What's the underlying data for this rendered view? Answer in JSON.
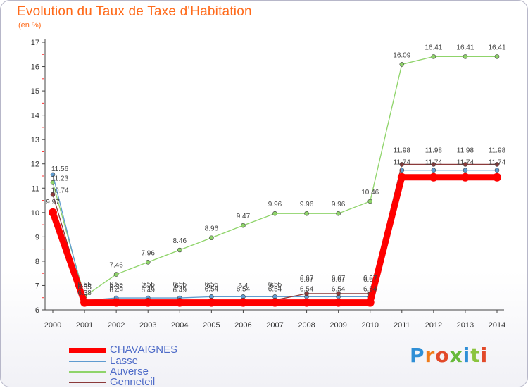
{
  "title": "Evolution du Taux de Taxe d'Habitation",
  "subtitle": "(en %)",
  "logo": {
    "text": "Proxiti",
    "colors": [
      "#2f8fd6",
      "#f07c1a",
      "#e24a2a",
      "#67b93a",
      "#2f8fd6",
      "#8bc43f",
      "#e24a2a"
    ]
  },
  "chart_data": {
    "type": "line",
    "x": [
      "2000",
      "2001",
      "2002",
      "2003",
      "2004",
      "2005",
      "2006",
      "2007",
      "2008",
      "2009",
      "2010",
      "2011",
      "2012",
      "2013",
      "2014"
    ],
    "ylim": [
      6,
      17
    ],
    "yticks": [
      6,
      7,
      8,
      9,
      10,
      11,
      12,
      13,
      14,
      15,
      16,
      17
    ],
    "grid": false,
    "legend_position": "bottom-left",
    "series": [
      {
        "name": "CHAVAIGNES",
        "color": "#ff0000",
        "values": [
          10.0,
          6.3,
          6.3,
          6.3,
          6.3,
          6.3,
          6.3,
          6.3,
          6.3,
          6.3,
          6.3,
          11.45,
          11.45,
          11.45,
          11.45
        ],
        "labels": []
      },
      {
        "name": "Lasse",
        "color": "#5f9bd0",
        "values": [
          11.56,
          6.38,
          6.49,
          6.49,
          6.49,
          6.54,
          6.54,
          6.54,
          6.54,
          6.54,
          6.54,
          11.74,
          11.74,
          11.74,
          11.74
        ],
        "labels": [
          "11.56",
          "6.38",
          "6.49",
          "6.49",
          "6.49",
          "6.54",
          "6.54",
          "6.54",
          "6.54",
          "6.54",
          "6.54",
          "11.74",
          "11.74",
          "11.74",
          "11.74"
        ]
      },
      {
        "name": "Auverse",
        "color": "#8fd46a",
        "values": [
          11.23,
          6.55,
          7.46,
          7.96,
          8.46,
          8.96,
          9.47,
          9.96,
          9.96,
          9.96,
          10.46,
          16.09,
          16.41,
          16.41,
          16.41
        ],
        "labels": [
          "11.23",
          "6.55",
          "7.46",
          "7.96",
          "8.46",
          "8.96",
          "9.47",
          "9.96",
          "9.96",
          "9.96",
          "10.46",
          "16.09",
          "16.41",
          "16.41",
          "16.41"
        ]
      },
      {
        "name": "Genneteil",
        "color": "#8b3a3a",
        "values": [
          10.74,
          6.35,
          6.35,
          6.4,
          6.4,
          6.4,
          6.4,
          6.4,
          6.67,
          6.67,
          6.67,
          11.98,
          11.98,
          11.98,
          11.98
        ],
        "labels": [
          "10.74",
          "6.35",
          "6.35",
          "6.4",
          "6.4",
          "6.4",
          "6.4",
          "6.4",
          "6.67",
          "6.67",
          "6.67",
          "11.98",
          "11.98",
          "11.98",
          "11.98"
        ]
      }
    ],
    "extra_labels": [
      "9.97",
      "6.55",
      "6.55",
      "6.55",
      "6.55",
      "6.55",
      "6.55",
      "6.67",
      "6.67",
      "6.67"
    ]
  }
}
